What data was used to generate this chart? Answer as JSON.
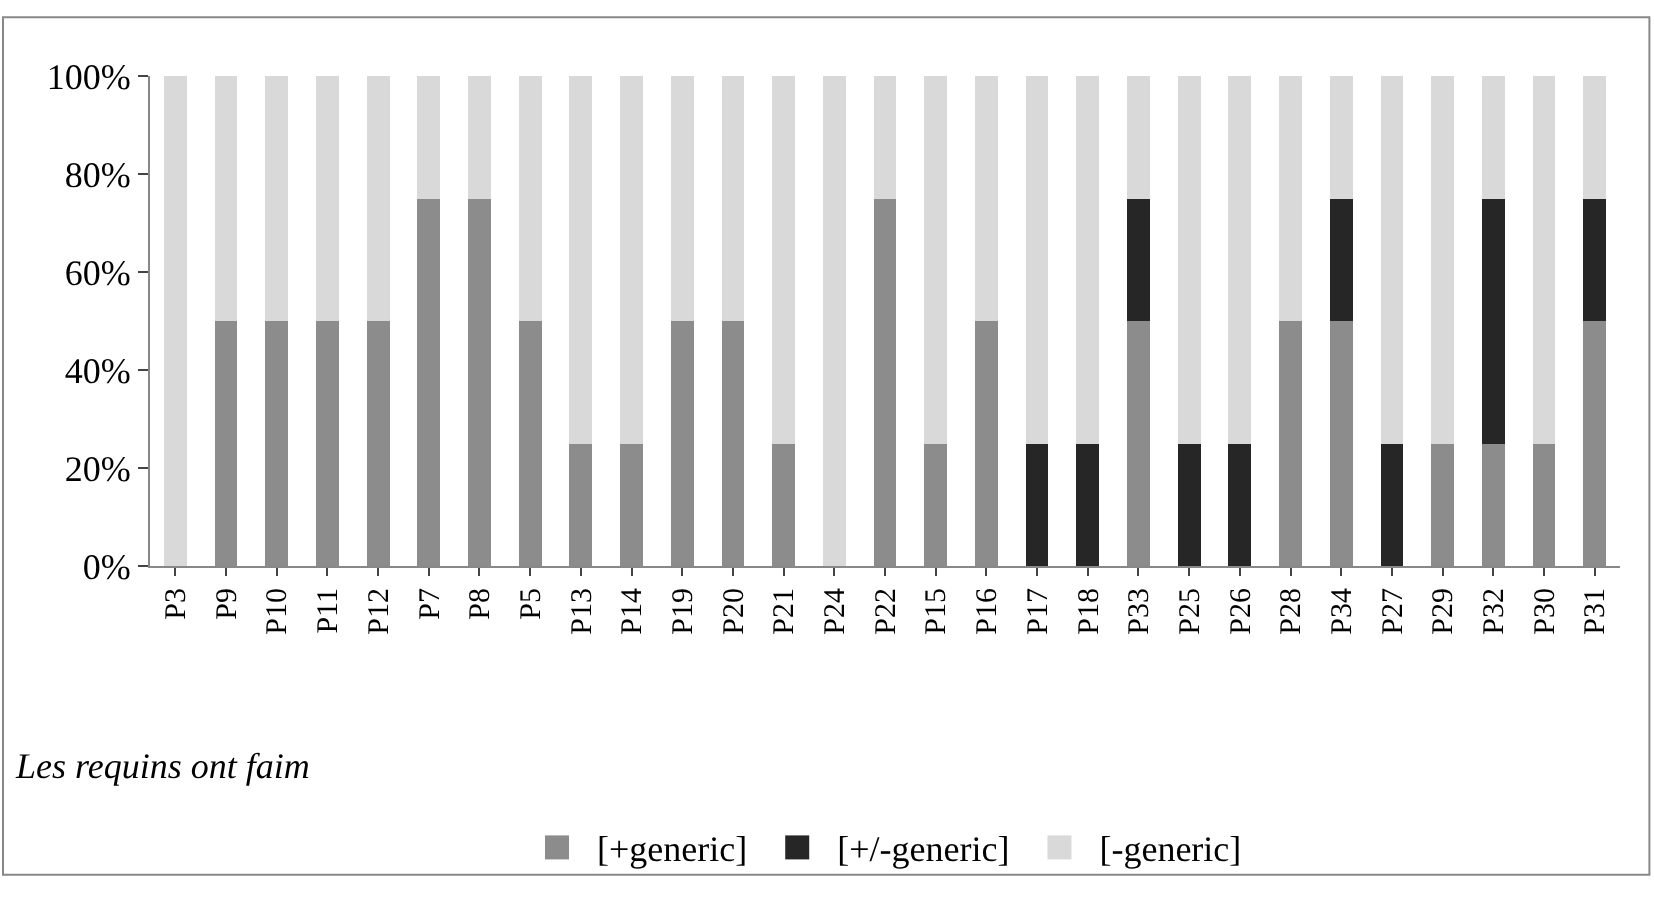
{
  "chart_data": {
    "type": "bar",
    "stacked": true,
    "xlabel": "Les requins ont faim",
    "categories": [
      "P3",
      "P9",
      "P10",
      "P11",
      "P12",
      "P7",
      "P8",
      "P5",
      "P13",
      "P14",
      "P19",
      "P20",
      "P21",
      "P24",
      "P22",
      "P15",
      "P16",
      "P17",
      "P18",
      "P33",
      "P25",
      "P26",
      "P28",
      "P34",
      "P27",
      "P29",
      "P32",
      "P30",
      "P31"
    ],
    "series": [
      {
        "name": "[+generic]",
        "color": "#8c8c8c",
        "values": [
          0,
          50,
          50,
          50,
          50,
          75,
          75,
          50,
          25,
          25,
          50,
          50,
          25,
          0,
          75,
          25,
          50,
          0,
          0,
          50,
          0,
          0,
          50,
          50,
          0,
          25,
          25,
          25,
          50
        ]
      },
      {
        "name": "[+/-generic]",
        "color": "#262626",
        "values": [
          0,
          0,
          0,
          0,
          0,
          0,
          0,
          0,
          0,
          0,
          0,
          0,
          0,
          0,
          0,
          0,
          0,
          25,
          25,
          25,
          25,
          25,
          0,
          25,
          25,
          0,
          50,
          0,
          25
        ]
      },
      {
        "name": "[-generic]",
        "color": "#d9d9d9",
        "values": [
          100,
          50,
          50,
          50,
          50,
          25,
          25,
          50,
          75,
          75,
          50,
          50,
          75,
          100,
          25,
          75,
          50,
          75,
          75,
          25,
          75,
          75,
          50,
          25,
          75,
          75,
          25,
          75,
          25
        ]
      }
    ],
    "ylim": [
      0,
      100
    ],
    "yticks": [
      {
        "value": 0,
        "label": "0%"
      },
      {
        "value": 20,
        "label": "20%"
      },
      {
        "value": 40,
        "label": "40%"
      },
      {
        "value": 60,
        "label": "60%"
      },
      {
        "value": 80,
        "label": "80%"
      },
      {
        "value": 100,
        "label": "100%"
      }
    ],
    "legend": "bottom"
  }
}
